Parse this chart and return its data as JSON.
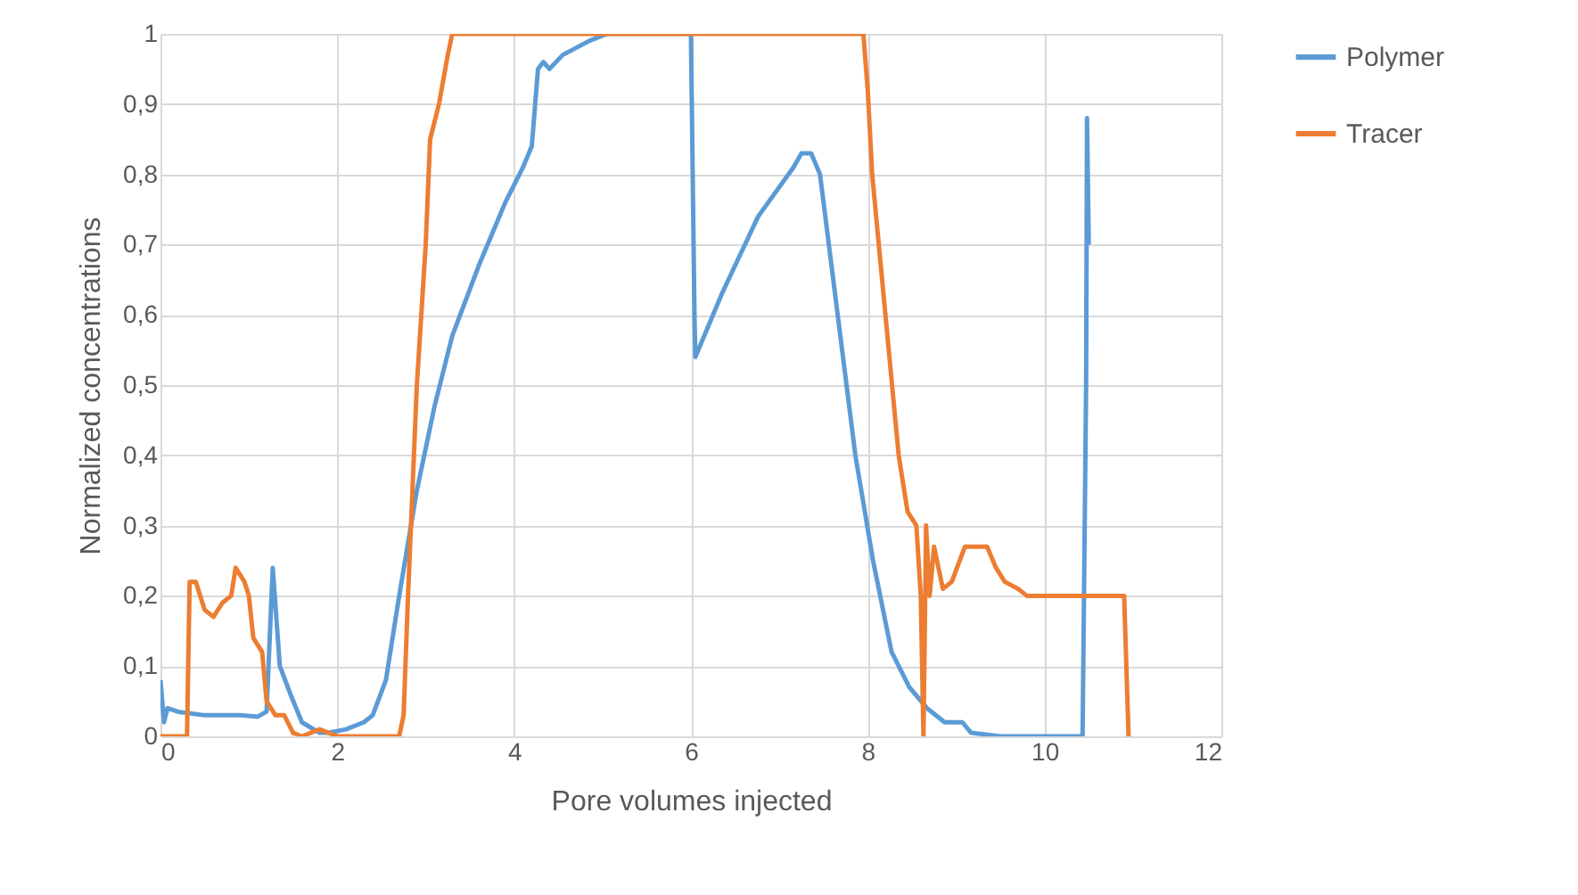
{
  "chart_data": {
    "type": "line",
    "xlabel": "Pore volumes injected",
    "ylabel": "Normalized concentrations",
    "xlim": [
      0,
      12
    ],
    "xticks": [
      0,
      2,
      4,
      6,
      8,
      10,
      12
    ],
    "ylim": [
      0,
      1
    ],
    "yticks": [
      0,
      {
        "value": 0.1,
        "label": "0,1"
      },
      {
        "value": 0.2,
        "label": "0,2"
      },
      {
        "value": 0.3,
        "label": "0,3"
      },
      {
        "value": 0.4,
        "label": "0,4"
      },
      {
        "value": 0.5,
        "label": "0,5"
      },
      {
        "value": 0.6,
        "label": "0,6"
      },
      {
        "value": 0.7,
        "label": "0,7"
      },
      {
        "value": 0.8,
        "label": "0,8"
      },
      {
        "value": 0.9,
        "label": "0,9"
      },
      1
    ],
    "grid": true,
    "legend": "right",
    "marker": "none",
    "line_style": "solid",
    "series": [
      {
        "name": "Polymer",
        "color": "#5b9bd5",
        "x": [
          0,
          0.04,
          0.08,
          0.2,
          0.5,
          0.9,
          1.1,
          1.2,
          1.27,
          1.35,
          1.47,
          1.6,
          1.8,
          1.9,
          2.1,
          2.3,
          2.4,
          2.55,
          2.7,
          2.9,
          3.1,
          3.3,
          3.6,
          3.9,
          4.1,
          4.2,
          4.27,
          4.33,
          4.4,
          4.55,
          4.85,
          5.05,
          6.0,
          6.02,
          6.04,
          6.05,
          6.35,
          6.76,
          7.16,
          7.25,
          7.36,
          7.46,
          7.66,
          7.86,
          8.06,
          8.27,
          8.47,
          8.67,
          8.87,
          9.07,
          9.17,
          9.5,
          10.43,
          10.47,
          10.48,
          10.5
        ],
        "values": [
          0.08,
          0.02,
          0.04,
          0.035,
          0.03,
          0.03,
          0.028,
          0.035,
          0.24,
          0.1,
          0.06,
          0.02,
          0.005,
          0.005,
          0.01,
          0.02,
          0.03,
          0.08,
          0.2,
          0.35,
          0.47,
          0.57,
          0.67,
          0.76,
          0.81,
          0.84,
          0.95,
          0.96,
          0.95,
          0.97,
          0.99,
          1,
          1,
          0.8,
          0.6,
          0.54,
          0.63,
          0.74,
          0.81,
          0.83,
          0.83,
          0.8,
          0.6,
          0.4,
          0.25,
          0.12,
          0.07,
          0.04,
          0.02,
          0.02,
          0.005,
          0,
          0,
          0.5,
          0.88,
          0.7
        ]
      },
      {
        "name": "Tracer",
        "color": "#ed7d31",
        "x": [
          0,
          0.3,
          0.33,
          0.4,
          0.5,
          0.6,
          0.7,
          0.8,
          0.85,
          0.95,
          1.0,
          1.05,
          1.15,
          1.2,
          1.3,
          1.4,
          1.5,
          1.6,
          1.8,
          2.0,
          2.7,
          2.75,
          2.8,
          2.9,
          3.0,
          3.05,
          3.15,
          3.25,
          3.3,
          7.95,
          8.0,
          8.05,
          8.2,
          8.35,
          8.45,
          8.55,
          8.6,
          8.63,
          8.66,
          8.7,
          8.75,
          8.85,
          8.95,
          9.1,
          9.35,
          9.45,
          9.55,
          9.7,
          9.8,
          10.9,
          10.95
        ],
        "values": [
          0,
          0,
          0.22,
          0.22,
          0.18,
          0.17,
          0.19,
          0.2,
          0.24,
          0.22,
          0.2,
          0.14,
          0.12,
          0.05,
          0.03,
          0.03,
          0.005,
          0,
          0.01,
          0,
          0,
          0.03,
          0.2,
          0.5,
          0.7,
          0.85,
          0.9,
          0.97,
          1,
          1,
          0.92,
          0.8,
          0.6,
          0.4,
          0.32,
          0.3,
          0.2,
          0,
          0.3,
          0.2,
          0.27,
          0.21,
          0.22,
          0.27,
          0.27,
          0.24,
          0.22,
          0.21,
          0.2,
          0.2,
          0
        ]
      }
    ]
  }
}
